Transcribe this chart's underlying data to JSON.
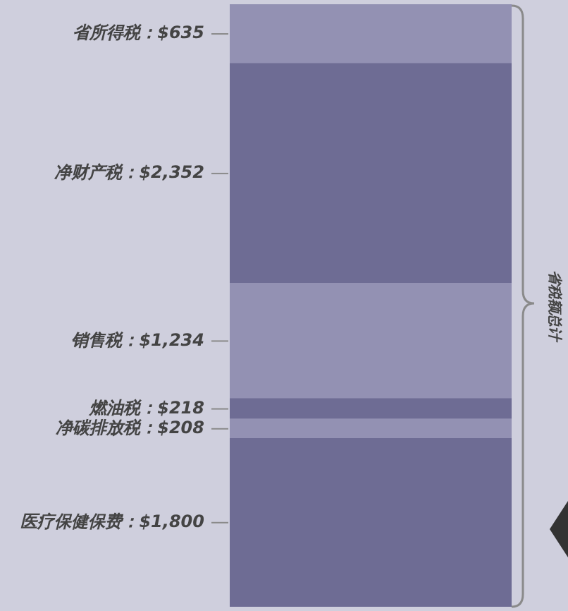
{
  "chart_data": {
    "type": "bar",
    "stacked": true,
    "categories": [
      null
    ],
    "ylim": [
      0,
      6447
    ],
    "series": [
      {
        "color": "#6e6c94",
        "values": [
          1800
        ],
        "value_labels": [
          "医疗保健保费：$1,800"
        ]
      },
      {
        "color": "#9391b3",
        "values": [
          208
        ],
        "value_labels": [
          "净碳排放税：$208"
        ]
      },
      {
        "color": "#6e6c94",
        "values": [
          218
        ],
        "value_labels": [
          "燃油税：$218"
        ]
      },
      {
        "color": "#9391b3",
        "values": [
          1234
        ],
        "value_labels": [
          "销售税：$1,234"
        ]
      },
      {
        "color": "#6e6c94",
        "values": [
          2352
        ],
        "value_labels": [
          "净财产税：$2,352"
        ]
      },
      {
        "color": "#9391b3",
        "values": [
          635
        ],
        "value_labels": [
          "省所得税：$635"
        ]
      }
    ],
    "annotations": [
      "省税额总计"
    ]
  }
}
